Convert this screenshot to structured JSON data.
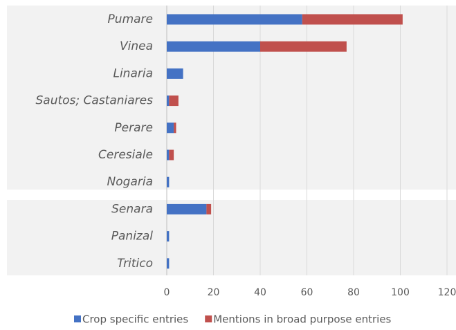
{
  "chart_data": {
    "type": "stacked-barh",
    "categories": [
      "Pumare",
      "Vinea",
      "Linaria",
      "Sautos; Castaniares",
      "Perare",
      "Ceresiale",
      "Nogaria",
      "Senara",
      "Panizal",
      "Tritico"
    ],
    "series": [
      {
        "name": "Crop specific entries",
        "color": "#4472c4",
        "values": [
          58,
          40,
          7,
          1,
          3,
          1,
          1,
          17,
          1,
          1
        ]
      },
      {
        "name": "Mentions in broad purpose entries",
        "color": "#c0504d",
        "values": [
          43,
          37,
          0,
          4,
          1,
          2,
          0,
          2,
          0,
          0
        ]
      }
    ],
    "xlim": [
      0,
      120
    ],
    "xticks": [
      0,
      20,
      40,
      60,
      80,
      100,
      120
    ],
    "grid": true
  }
}
